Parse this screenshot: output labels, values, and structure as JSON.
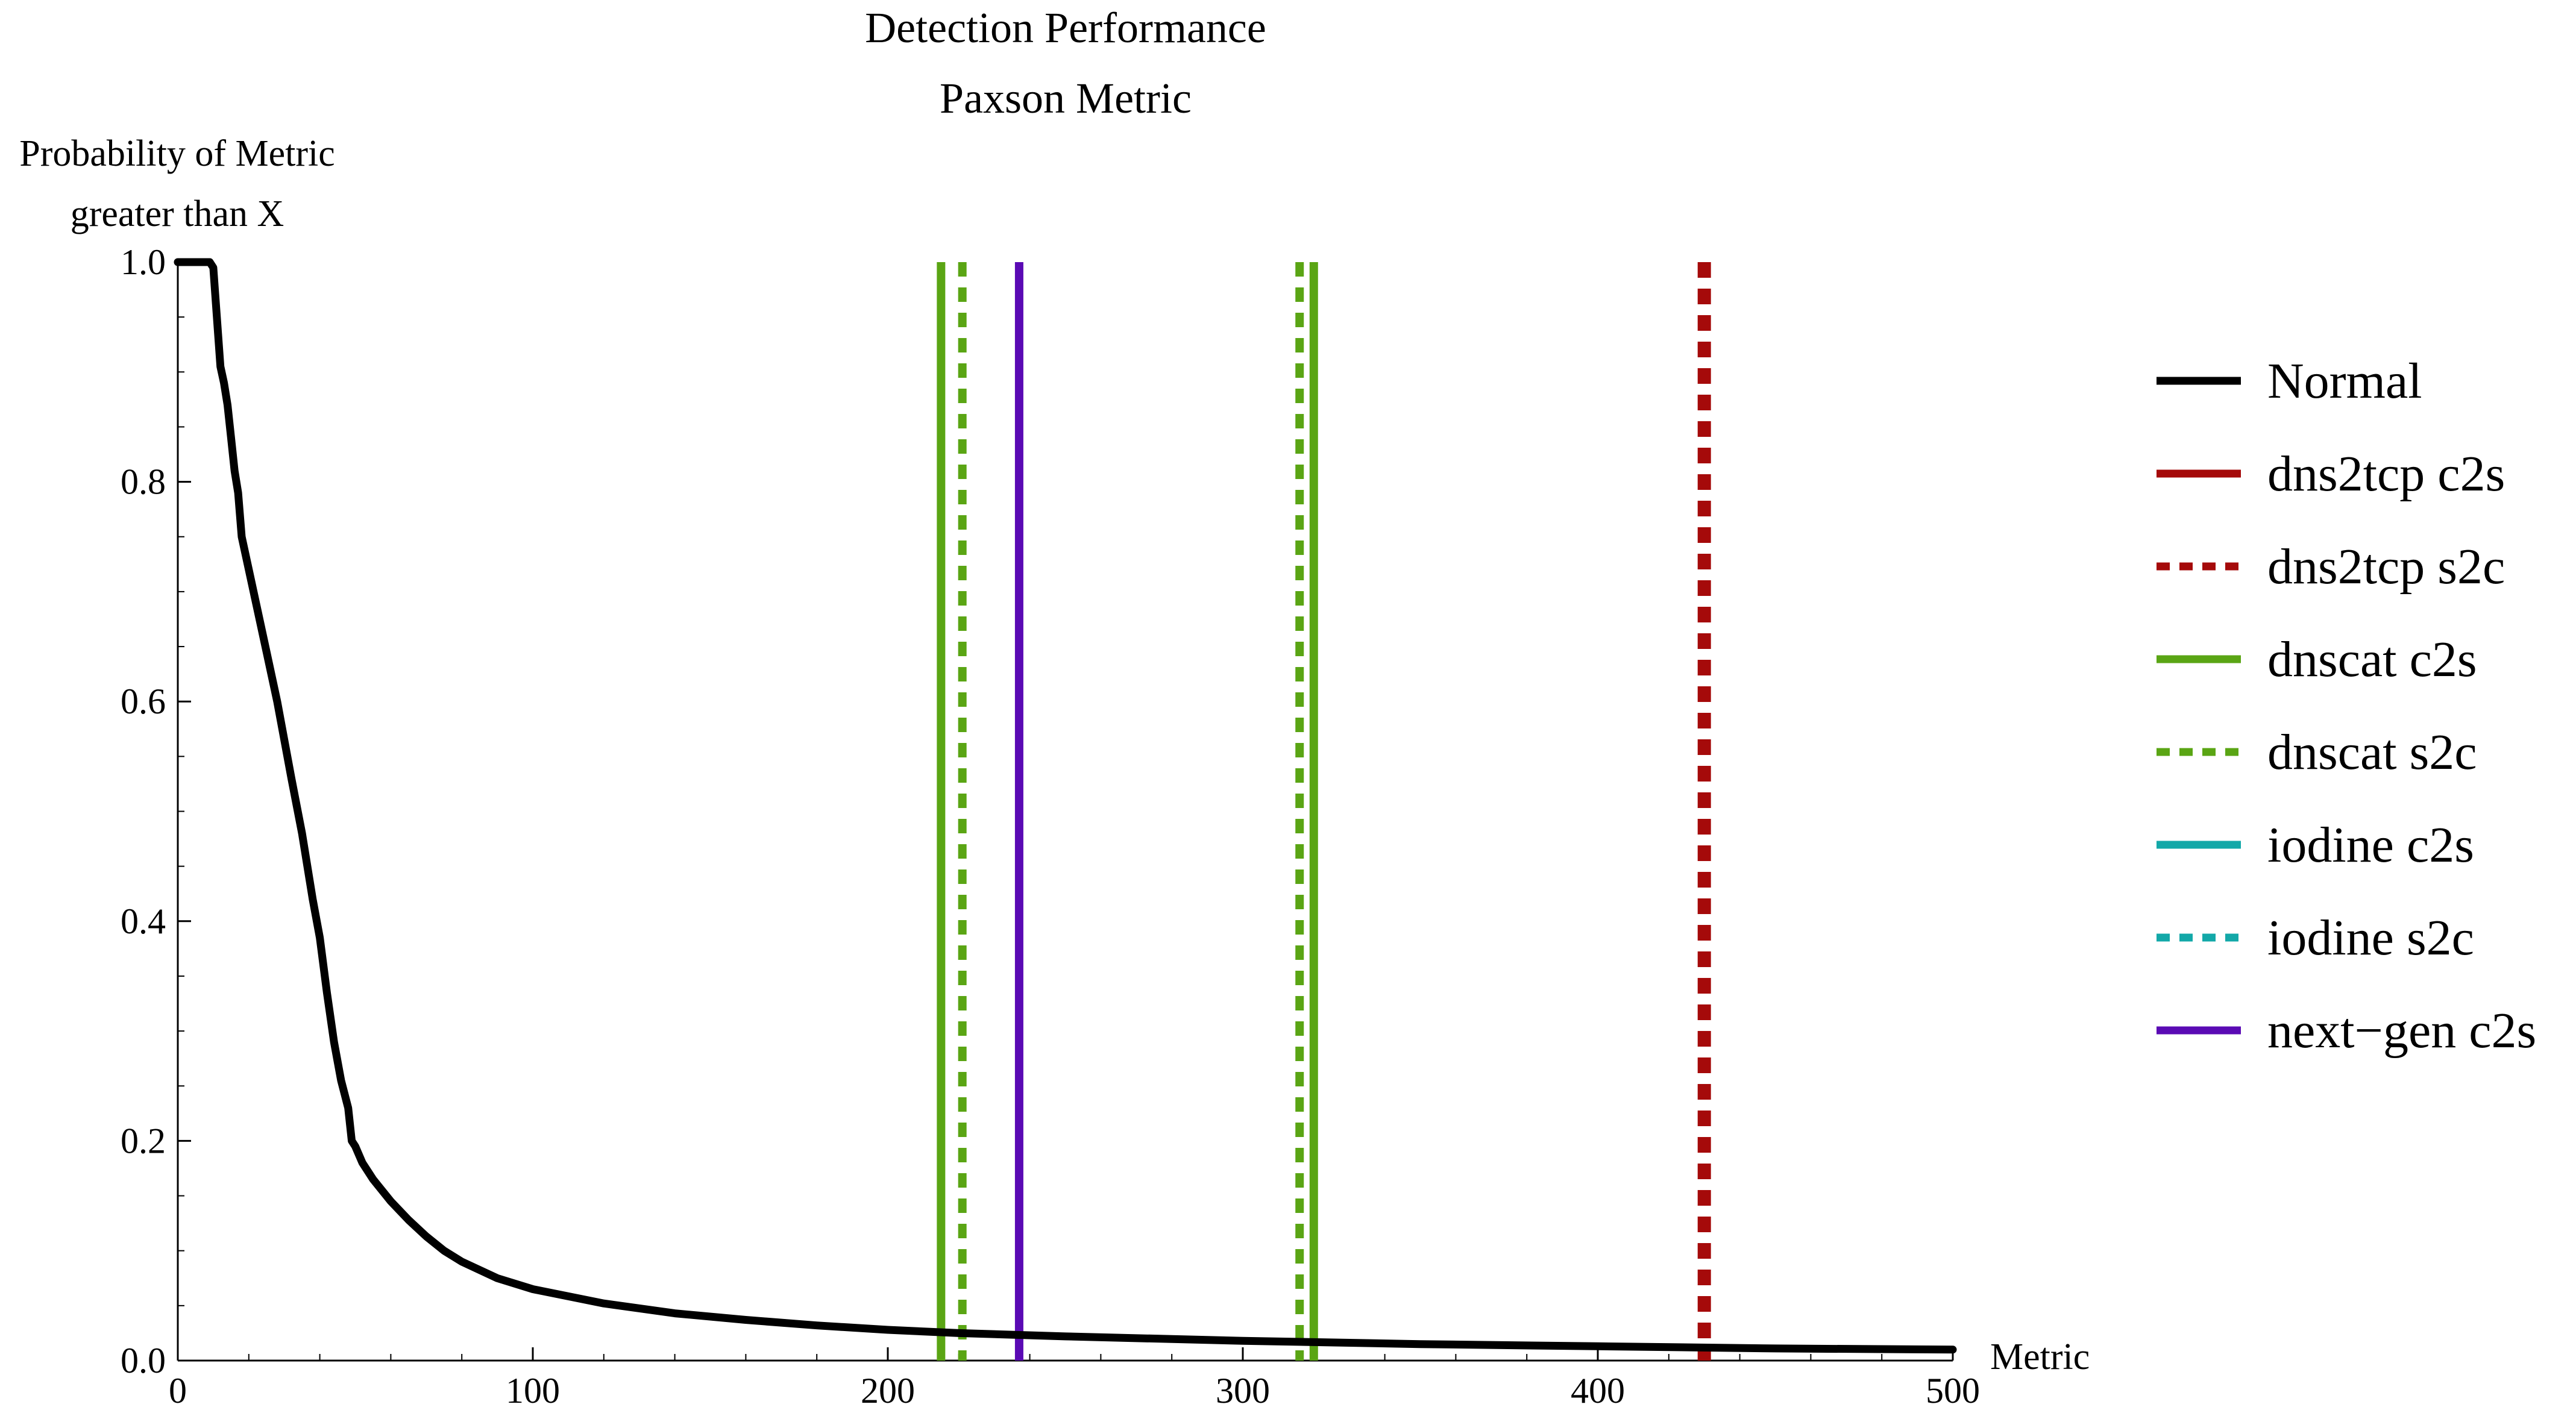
{
  "chart_data": {
    "type": "line",
    "title": [
      "Detection Performance",
      "Paxson Metric"
    ],
    "ylabel": [
      "Probability of Metric",
      "greater than X"
    ],
    "xlabel": "Metric",
    "xlim": [
      0,
      500
    ],
    "ylim": [
      0,
      1
    ],
    "x_ticks": [
      "0",
      "100",
      "200",
      "300",
      "400",
      "500"
    ],
    "y_ticks": [
      "0.0",
      "0.2",
      "0.4",
      "0.6",
      "0.8",
      "1.0"
    ],
    "grid": false,
    "legend_position": "right",
    "series": [
      {
        "name": "Normal",
        "color": "#000000",
        "style": "solid",
        "kind": "curve",
        "points": [
          [
            0,
            1.0
          ],
          [
            9,
            1.0
          ],
          [
            10,
            0.995
          ],
          [
            11,
            0.95
          ],
          [
            12,
            0.905
          ],
          [
            13,
            0.89
          ],
          [
            14,
            0.87
          ],
          [
            15,
            0.84
          ],
          [
            16,
            0.81
          ],
          [
            17,
            0.79
          ],
          [
            18,
            0.75
          ],
          [
            20,
            0.72
          ],
          [
            22,
            0.69
          ],
          [
            25,
            0.645
          ],
          [
            28,
            0.6
          ],
          [
            30,
            0.565
          ],
          [
            32,
            0.53
          ],
          [
            35,
            0.48
          ],
          [
            38,
            0.42
          ],
          [
            40,
            0.385
          ],
          [
            42,
            0.335
          ],
          [
            44,
            0.29
          ],
          [
            46,
            0.255
          ],
          [
            48,
            0.23
          ],
          [
            49,
            0.2
          ],
          [
            50,
            0.195
          ],
          [
            52,
            0.18
          ],
          [
            55,
            0.165
          ],
          [
            60,
            0.145
          ],
          [
            65,
            0.128
          ],
          [
            70,
            0.113
          ],
          [
            75,
            0.1
          ],
          [
            80,
            0.09
          ],
          [
            90,
            0.075
          ],
          [
            100,
            0.065
          ],
          [
            120,
            0.052
          ],
          [
            140,
            0.043
          ],
          [
            160,
            0.037
          ],
          [
            180,
            0.032
          ],
          [
            200,
            0.028
          ],
          [
            220,
            0.025
          ],
          [
            250,
            0.022
          ],
          [
            300,
            0.018
          ],
          [
            350,
            0.015
          ],
          [
            400,
            0.013
          ],
          [
            450,
            0.011
          ],
          [
            500,
            0.01
          ]
        ]
      },
      {
        "name": "dns2tcp c2s",
        "color": "#a50a0a",
        "style": "solid",
        "kind": "vline"
      },
      {
        "name": "dns2tcp s2c",
        "color": "#a50a0a",
        "style": "dashed",
        "kind": "vline",
        "x": 430
      },
      {
        "name": "dnscat c2s",
        "color": "#5aa514",
        "style": "solid",
        "kind": "vline",
        "x": [
          215,
          320
        ]
      },
      {
        "name": "dnscat s2c",
        "color": "#5aa514",
        "style": "dashed",
        "kind": "vline",
        "x": [
          221,
          316
        ]
      },
      {
        "name": "iodine c2s",
        "color": "#13a8a8",
        "style": "solid",
        "kind": "vline"
      },
      {
        "name": "iodine s2c",
        "color": "#13a8a8",
        "style": "dashed",
        "kind": "vline"
      },
      {
        "name": "next−gen c2s",
        "color": "#5a0ab4",
        "style": "solid",
        "kind": "vline",
        "x": 237
      }
    ]
  }
}
